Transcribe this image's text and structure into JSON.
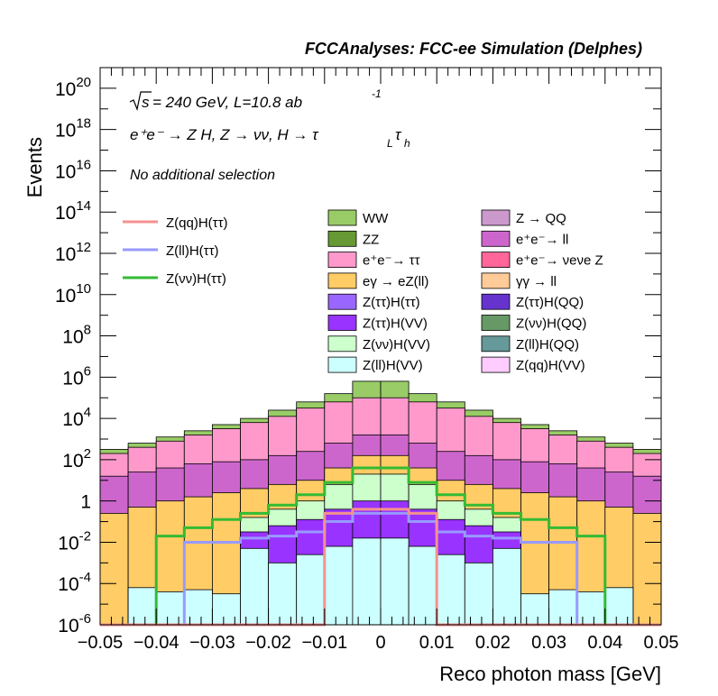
{
  "chart_data": {
    "type": "bar",
    "stacked": true,
    "title": "FCCAnalyses: FCC-ee Simulation (Delphes)",
    "xlabel": "Reco photon mass [GeV]",
    "ylabel": "Events",
    "log_y": true,
    "xlim": [
      -0.05,
      0.05
    ],
    "ylim": [
      1e-06,
      1e+21
    ],
    "x_ticks": [
      "−0.05",
      "−0.04",
      "−0.03",
      "−0.02",
      "−0.01",
      "0",
      "0.01",
      "0.02",
      "0.03",
      "0.04",
      "0.05"
    ],
    "y_tick_exponents": [
      -6,
      -4,
      -2,
      0,
      2,
      4,
      6,
      8,
      10,
      12,
      14,
      16,
      18,
      20
    ],
    "y_tick_special": {
      "0": "1"
    },
    "grid": false,
    "annotations": {
      "energy": "= 240 GeV, L=10.8 ab",
      "energy_prefix": "s",
      "energy_exponent": "-1",
      "process": "e⁺e⁻ → Z H, Z  → νν, H → τ",
      "process_sub1": "L",
      "process_tau": "τ",
      "process_sub2": "h",
      "selection": "No additional selection"
    },
    "signal_legend": [
      {
        "name": "Z(qq)H(ττ)",
        "color": "#f4928f"
      },
      {
        "name": "Z(ll)H(ττ)",
        "color": "#9999ff"
      },
      {
        "name": "Z(νν)H(ττ)",
        "color": "#33bb33"
      }
    ],
    "stack_legend_col1": [
      {
        "name": "WW",
        "color": "#99cc66"
      },
      {
        "name": "ZZ",
        "color": "#669933"
      },
      {
        "name": "e⁺e⁻→ ττ",
        "color": "#ff99cc"
      },
      {
        "name": "eγ → eZ(ll)",
        "color": "#ffcc66"
      },
      {
        "name": "Z(ττ)H(ττ)",
        "color": "#9966ff"
      },
      {
        "name": "Z(ττ)H(VV)",
        "color": "#9933ff"
      },
      {
        "name": "Z(νν)H(VV)",
        "color": "#ccffcc"
      },
      {
        "name": "Z(ll)H(VV)",
        "color": "#ccffff"
      }
    ],
    "stack_legend_col2": [
      {
        "name": "Z → QQ",
        "color": "#cc99cc"
      },
      {
        "name": "e⁺e⁻→ ll",
        "color": "#cc66cc"
      },
      {
        "name": "e⁺e⁻→ νeνe Z",
        "color": "#ff6699"
      },
      {
        "name": "γγ → ll",
        "color": "#ffcc99"
      },
      {
        "name": "Z(ττ)H(QQ)",
        "color": "#6633cc"
      },
      {
        "name": "Z(νν)H(QQ)",
        "color": "#669966"
      },
      {
        "name": "Z(ll)H(QQ)",
        "color": "#669999"
      },
      {
        "name": "Z(qq)H(VV)",
        "color": "#ffccff"
      }
    ],
    "bin_centers": [
      -0.0475,
      -0.0425,
      -0.0375,
      -0.0325,
      -0.0275,
      -0.0225,
      -0.0175,
      -0.0125,
      -0.0075,
      -0.0025,
      0.0025,
      0.0075,
      0.0125,
      0.0175,
      0.0225,
      0.0275,
      0.0325,
      0.0375,
      0.0425,
      0.0475
    ],
    "stack_envelopes_log10": [
      {
        "name": "WW",
        "values": [
          2.5,
          2.8,
          3.1,
          3.4,
          3.7,
          4.0,
          4.4,
          4.8,
          5.2,
          5.8,
          5.8,
          5.2,
          4.8,
          4.4,
          4.0,
          3.7,
          3.4,
          3.1,
          2.8,
          2.5
        ]
      },
      {
        "name": "e⁺e⁻→ ττ",
        "values": [
          2.3,
          2.6,
          2.9,
          3.2,
          3.5,
          3.8,
          4.1,
          4.5,
          4.8,
          5.0,
          5.0,
          4.8,
          4.5,
          4.1,
          3.8,
          3.5,
          3.2,
          2.9,
          2.6,
          2.3
        ]
      },
      {
        "name": "e⁺e⁻→ ll",
        "values": [
          1.2,
          1.4,
          1.6,
          1.8,
          1.9,
          2.0,
          2.2,
          2.4,
          2.8,
          3.2,
          3.2,
          2.8,
          2.4,
          2.2,
          2.0,
          1.9,
          1.8,
          1.6,
          1.4,
          1.2
        ]
      },
      {
        "name": "eγ → eZ(ll)",
        "values": [
          -0.6,
          -0.3,
          0.0,
          0.2,
          0.4,
          0.6,
          0.8,
          1.0,
          1.6,
          2.2,
          2.2,
          1.6,
          1.0,
          0.8,
          0.6,
          0.4,
          0.2,
          0.0,
          -0.3,
          -0.6
        ]
      },
      {
        "name": "Z(νν)H(VV)",
        "values": [
          -6,
          -6,
          -6,
          -6,
          -6,
          -0.8,
          -0.4,
          0.0,
          0.8,
          1.3,
          1.3,
          0.8,
          0.0,
          -0.4,
          -0.8,
          -6,
          -6,
          -6,
          -6,
          -6
        ]
      },
      {
        "name": "Z(ττ)H(VV)",
        "values": [
          -6,
          -6,
          -6,
          -6,
          -6,
          -1.5,
          -1.2,
          -0.9,
          -0.4,
          0.0,
          0.0,
          -0.4,
          -0.9,
          -1.2,
          -1.5,
          -6,
          -6,
          -6,
          -6,
          -6
        ]
      },
      {
        "name": "Z(ll)H(VV)",
        "values": [
          -6,
          -4.2,
          -4.4,
          -4.3,
          -4.5,
          -2.3,
          -3.0,
          -2.6,
          -2.2,
          -1.8,
          -1.8,
          -2.2,
          -2.6,
          -3.0,
          -2.3,
          -4.5,
          -4.3,
          -4.4,
          -4.2,
          -6
        ]
      }
    ],
    "signal_lines_log10": [
      {
        "name": "Z(νν)H(ττ)",
        "values": [
          -6,
          -6,
          -1.7,
          -1.3,
          -0.9,
          -0.6,
          -0.2,
          0.3,
          0.9,
          1.6,
          1.6,
          0.9,
          0.3,
          -0.2,
          -0.6,
          -0.9,
          -1.3,
          -1.7,
          -6,
          -6
        ]
      },
      {
        "name": "Z(ll)H(ττ)",
        "values": [
          -6,
          -6,
          -6,
          -2.0,
          -2.0,
          -1.8,
          -1.7,
          -1.5,
          -1.0,
          -0.6,
          -0.6,
          -1.0,
          -1.5,
          -1.7,
          -1.8,
          -2.0,
          -2.0,
          -6,
          -6,
          -6
        ]
      },
      {
        "name": "Z(qq)H(ττ)",
        "values": [
          -6,
          -6,
          -6,
          -6,
          -6,
          -6,
          -6,
          -6,
          -0.6,
          -0.4,
          -0.4,
          -0.6,
          -6,
          -6,
          -6,
          -6,
          -6,
          -6,
          -6,
          -6
        ]
      }
    ]
  }
}
